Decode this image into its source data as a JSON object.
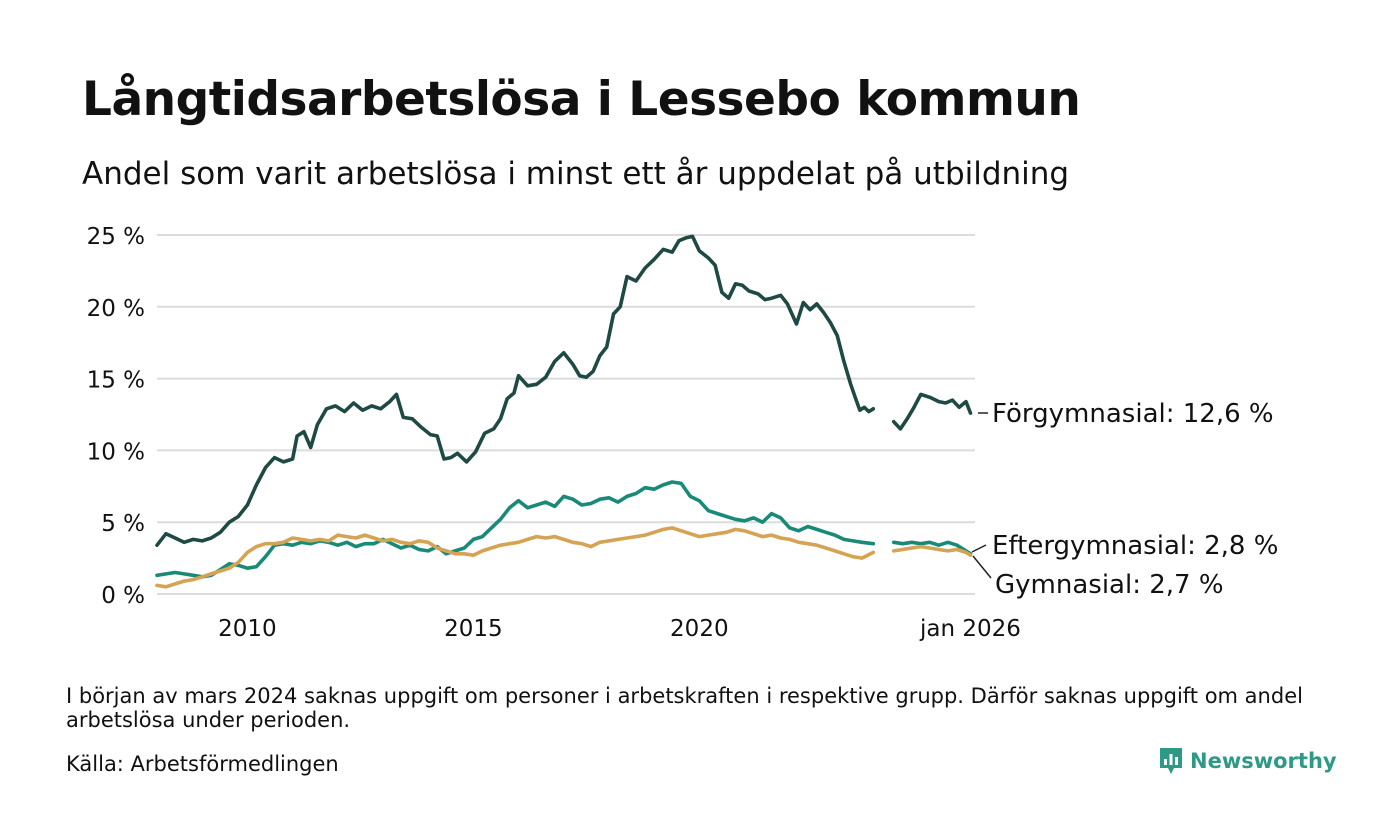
{
  "title": "Långtidsarbetslösa i Lessebo kommun",
  "subtitle": "Andel som varit arbetslösa i minst ett år uppdelat på utbildning",
  "note": "I början av mars 2024 saknas uppgift om personer i arbetskraften i respektive grupp. Därför saknas uppgift om andel arbetslösa under perioden.",
  "source": "Källa: Arbetsförmedlingen",
  "brand": "Newsworthy",
  "chart_data": {
    "type": "line",
    "x_unit": "year (decimal)",
    "xlim": [
      2008.0,
      2026.1
    ],
    "ylim": [
      0,
      25
    ],
    "y_ticks": [
      {
        "value": 0,
        "label": "0 %"
      },
      {
        "value": 5,
        "label": "5 %"
      },
      {
        "value": 10,
        "label": "10 %"
      },
      {
        "value": 15,
        "label": "15 %"
      },
      {
        "value": 20,
        "label": "20 %"
      },
      {
        "value": 25,
        "label": "25 %"
      }
    ],
    "x_ticks": [
      {
        "value": 2010,
        "label": "2010"
      },
      {
        "value": 2015,
        "label": "2015"
      },
      {
        "value": 2020,
        "label": "2020"
      },
      {
        "value": 2026,
        "label": "jan 2026"
      }
    ],
    "grid": true,
    "gap": {
      "from": 2023.85,
      "to": 2024.3
    },
    "series": [
      {
        "name": "Förgymnasial",
        "label": "Förgymnasial: 12,6 %",
        "color": "#1f4a44",
        "points": [
          [
            2008.0,
            3.4
          ],
          [
            2008.2,
            4.2
          ],
          [
            2008.4,
            3.9
          ],
          [
            2008.6,
            3.6
          ],
          [
            2008.8,
            3.8
          ],
          [
            2009.0,
            3.7
          ],
          [
            2009.2,
            3.9
          ],
          [
            2009.4,
            4.3
          ],
          [
            2009.6,
            5.0
          ],
          [
            2009.8,
            5.4
          ],
          [
            2010.0,
            6.2
          ],
          [
            2010.2,
            7.6
          ],
          [
            2010.4,
            8.8
          ],
          [
            2010.6,
            9.5
          ],
          [
            2010.8,
            9.2
          ],
          [
            2011.0,
            9.4
          ],
          [
            2011.1,
            11.0
          ],
          [
            2011.25,
            11.3
          ],
          [
            2011.4,
            10.2
          ],
          [
            2011.55,
            11.8
          ],
          [
            2011.75,
            12.9
          ],
          [
            2011.95,
            13.1
          ],
          [
            2012.15,
            12.7
          ],
          [
            2012.35,
            13.3
          ],
          [
            2012.55,
            12.8
          ],
          [
            2012.75,
            13.1
          ],
          [
            2012.95,
            12.9
          ],
          [
            2013.15,
            13.4
          ],
          [
            2013.3,
            13.9
          ],
          [
            2013.45,
            12.3
          ],
          [
            2013.65,
            12.2
          ],
          [
            2013.85,
            11.6
          ],
          [
            2014.05,
            11.1
          ],
          [
            2014.2,
            11.0
          ],
          [
            2014.35,
            9.4
          ],
          [
            2014.5,
            9.5
          ],
          [
            2014.65,
            9.8
          ],
          [
            2014.85,
            9.2
          ],
          [
            2015.05,
            9.9
          ],
          [
            2015.25,
            11.2
          ],
          [
            2015.45,
            11.5
          ],
          [
            2015.6,
            12.2
          ],
          [
            2015.75,
            13.6
          ],
          [
            2015.9,
            14.0
          ],
          [
            2016.0,
            15.2
          ],
          [
            2016.2,
            14.5
          ],
          [
            2016.4,
            14.6
          ],
          [
            2016.6,
            15.1
          ],
          [
            2016.8,
            16.2
          ],
          [
            2017.0,
            16.8
          ],
          [
            2017.2,
            16.0
          ],
          [
            2017.35,
            15.2
          ],
          [
            2017.5,
            15.1
          ],
          [
            2017.65,
            15.5
          ],
          [
            2017.8,
            16.6
          ],
          [
            2017.95,
            17.2
          ],
          [
            2018.1,
            19.5
          ],
          [
            2018.25,
            20.0
          ],
          [
            2018.4,
            22.1
          ],
          [
            2018.6,
            21.8
          ],
          [
            2018.8,
            22.7
          ],
          [
            2019.0,
            23.3
          ],
          [
            2019.2,
            24.0
          ],
          [
            2019.4,
            23.8
          ],
          [
            2019.55,
            24.6
          ],
          [
            2019.7,
            24.8
          ],
          [
            2019.85,
            24.9
          ],
          [
            2020.0,
            23.9
          ],
          [
            2020.2,
            23.4
          ],
          [
            2020.35,
            22.9
          ],
          [
            2020.5,
            21.0
          ],
          [
            2020.65,
            20.6
          ],
          [
            2020.8,
            21.6
          ],
          [
            2020.95,
            21.5
          ],
          [
            2021.1,
            21.1
          ],
          [
            2021.3,
            20.9
          ],
          [
            2021.45,
            20.5
          ],
          [
            2021.6,
            20.6
          ],
          [
            2021.8,
            20.8
          ],
          [
            2021.95,
            20.2
          ],
          [
            2022.15,
            18.8
          ],
          [
            2022.3,
            20.3
          ],
          [
            2022.45,
            19.8
          ],
          [
            2022.6,
            20.2
          ],
          [
            2022.75,
            19.6
          ],
          [
            2022.9,
            18.9
          ],
          [
            2023.05,
            18.0
          ],
          [
            2023.2,
            16.2
          ],
          [
            2023.35,
            14.6
          ],
          [
            2023.45,
            13.7
          ],
          [
            2023.55,
            12.8
          ],
          [
            2023.65,
            13.0
          ],
          [
            2023.75,
            12.7
          ],
          [
            2023.85,
            12.9
          ],
          [
            2024.3,
            12.0
          ],
          [
            2024.45,
            11.5
          ],
          [
            2024.6,
            12.2
          ],
          [
            2024.75,
            13.0
          ],
          [
            2024.9,
            13.9
          ],
          [
            2025.1,
            13.7
          ],
          [
            2025.3,
            13.4
          ],
          [
            2025.45,
            13.3
          ],
          [
            2025.6,
            13.5
          ],
          [
            2025.75,
            13.0
          ],
          [
            2025.9,
            13.4
          ],
          [
            2026.0,
            12.6
          ]
        ]
      },
      {
        "name": "Eftergymnasial",
        "label": "Eftergymnasial:  2,8 %",
        "color": "#1a8a78",
        "points": [
          [
            2008.0,
            1.3
          ],
          [
            2008.2,
            1.4
          ],
          [
            2008.4,
            1.5
          ],
          [
            2008.6,
            1.4
          ],
          [
            2008.8,
            1.3
          ],
          [
            2009.0,
            1.2
          ],
          [
            2009.2,
            1.3
          ],
          [
            2009.4,
            1.7
          ],
          [
            2009.6,
            2.1
          ],
          [
            2009.8,
            2.0
          ],
          [
            2010.0,
            1.8
          ],
          [
            2010.2,
            1.9
          ],
          [
            2010.4,
            2.6
          ],
          [
            2010.6,
            3.4
          ],
          [
            2010.8,
            3.5
          ],
          [
            2011.0,
            3.4
          ],
          [
            2011.2,
            3.6
          ],
          [
            2011.4,
            3.5
          ],
          [
            2011.6,
            3.7
          ],
          [
            2011.8,
            3.6
          ],
          [
            2012.0,
            3.4
          ],
          [
            2012.2,
            3.6
          ],
          [
            2012.4,
            3.3
          ],
          [
            2012.6,
            3.5
          ],
          [
            2012.8,
            3.5
          ],
          [
            2013.0,
            3.8
          ],
          [
            2013.2,
            3.5
          ],
          [
            2013.4,
            3.2
          ],
          [
            2013.6,
            3.4
          ],
          [
            2013.8,
            3.1
          ],
          [
            2014.0,
            3.0
          ],
          [
            2014.2,
            3.3
          ],
          [
            2014.4,
            2.8
          ],
          [
            2014.6,
            3.0
          ],
          [
            2014.8,
            3.2
          ],
          [
            2015.0,
            3.8
          ],
          [
            2015.2,
            4.0
          ],
          [
            2015.4,
            4.6
          ],
          [
            2015.6,
            5.2
          ],
          [
            2015.8,
            6.0
          ],
          [
            2016.0,
            6.5
          ],
          [
            2016.2,
            6.0
          ],
          [
            2016.4,
            6.2
          ],
          [
            2016.6,
            6.4
          ],
          [
            2016.8,
            6.1
          ],
          [
            2017.0,
            6.8
          ],
          [
            2017.2,
            6.6
          ],
          [
            2017.4,
            6.2
          ],
          [
            2017.6,
            6.3
          ],
          [
            2017.8,
            6.6
          ],
          [
            2018.0,
            6.7
          ],
          [
            2018.2,
            6.4
          ],
          [
            2018.4,
            6.8
          ],
          [
            2018.6,
            7.0
          ],
          [
            2018.8,
            7.4
          ],
          [
            2019.0,
            7.3
          ],
          [
            2019.2,
            7.6
          ],
          [
            2019.4,
            7.8
          ],
          [
            2019.6,
            7.7
          ],
          [
            2019.8,
            6.8
          ],
          [
            2020.0,
            6.5
          ],
          [
            2020.2,
            5.8
          ],
          [
            2020.4,
            5.6
          ],
          [
            2020.6,
            5.4
          ],
          [
            2020.8,
            5.2
          ],
          [
            2021.0,
            5.1
          ],
          [
            2021.2,
            5.3
          ],
          [
            2021.4,
            5.0
          ],
          [
            2021.6,
            5.6
          ],
          [
            2021.8,
            5.3
          ],
          [
            2022.0,
            4.6
          ],
          [
            2022.2,
            4.4
          ],
          [
            2022.4,
            4.7
          ],
          [
            2022.6,
            4.5
          ],
          [
            2022.8,
            4.3
          ],
          [
            2023.0,
            4.1
          ],
          [
            2023.2,
            3.8
          ],
          [
            2023.4,
            3.7
          ],
          [
            2023.6,
            3.6
          ],
          [
            2023.85,
            3.5
          ],
          [
            2024.3,
            3.6
          ],
          [
            2024.5,
            3.5
          ],
          [
            2024.7,
            3.6
          ],
          [
            2024.9,
            3.5
          ],
          [
            2025.1,
            3.6
          ],
          [
            2025.3,
            3.4
          ],
          [
            2025.5,
            3.6
          ],
          [
            2025.7,
            3.4
          ],
          [
            2025.9,
            3.0
          ],
          [
            2026.0,
            2.8
          ]
        ]
      },
      {
        "name": "Gymnasial",
        "label": "Gymnasial:  2,7 %",
        "color": "#d4a354",
        "points": [
          [
            2008.0,
            0.6
          ],
          [
            2008.2,
            0.5
          ],
          [
            2008.4,
            0.7
          ],
          [
            2008.6,
            0.9
          ],
          [
            2008.8,
            1.0
          ],
          [
            2009.0,
            1.2
          ],
          [
            2009.2,
            1.4
          ],
          [
            2009.4,
            1.6
          ],
          [
            2009.6,
            1.8
          ],
          [
            2009.8,
            2.2
          ],
          [
            2010.0,
            2.9
          ],
          [
            2010.2,
            3.3
          ],
          [
            2010.4,
            3.5
          ],
          [
            2010.6,
            3.5
          ],
          [
            2010.8,
            3.6
          ],
          [
            2011.0,
            3.9
          ],
          [
            2011.2,
            3.8
          ],
          [
            2011.4,
            3.7
          ],
          [
            2011.6,
            3.8
          ],
          [
            2011.8,
            3.7
          ],
          [
            2012.0,
            4.1
          ],
          [
            2012.2,
            4.0
          ],
          [
            2012.4,
            3.9
          ],
          [
            2012.6,
            4.1
          ],
          [
            2012.8,
            3.9
          ],
          [
            2013.0,
            3.7
          ],
          [
            2013.2,
            3.8
          ],
          [
            2013.4,
            3.6
          ],
          [
            2013.6,
            3.5
          ],
          [
            2013.8,
            3.7
          ],
          [
            2014.0,
            3.6
          ],
          [
            2014.2,
            3.2
          ],
          [
            2014.4,
            3.0
          ],
          [
            2014.6,
            2.8
          ],
          [
            2014.8,
            2.8
          ],
          [
            2015.0,
            2.7
          ],
          [
            2015.2,
            3.0
          ],
          [
            2015.4,
            3.2
          ],
          [
            2015.6,
            3.4
          ],
          [
            2015.8,
            3.5
          ],
          [
            2016.0,
            3.6
          ],
          [
            2016.2,
            3.8
          ],
          [
            2016.4,
            4.0
          ],
          [
            2016.6,
            3.9
          ],
          [
            2016.8,
            4.0
          ],
          [
            2017.0,
            3.8
          ],
          [
            2017.2,
            3.6
          ],
          [
            2017.4,
            3.5
          ],
          [
            2017.6,
            3.3
          ],
          [
            2017.8,
            3.6
          ],
          [
            2018.0,
            3.7
          ],
          [
            2018.2,
            3.8
          ],
          [
            2018.4,
            3.9
          ],
          [
            2018.6,
            4.0
          ],
          [
            2018.8,
            4.1
          ],
          [
            2019.0,
            4.3
          ],
          [
            2019.2,
            4.5
          ],
          [
            2019.4,
            4.6
          ],
          [
            2019.6,
            4.4
          ],
          [
            2019.8,
            4.2
          ],
          [
            2020.0,
            4.0
          ],
          [
            2020.2,
            4.1
          ],
          [
            2020.4,
            4.2
          ],
          [
            2020.6,
            4.3
          ],
          [
            2020.8,
            4.5
          ],
          [
            2021.0,
            4.4
          ],
          [
            2021.2,
            4.2
          ],
          [
            2021.4,
            4.0
          ],
          [
            2021.6,
            4.1
          ],
          [
            2021.8,
            3.9
          ],
          [
            2022.0,
            3.8
          ],
          [
            2022.2,
            3.6
          ],
          [
            2022.4,
            3.5
          ],
          [
            2022.6,
            3.4
          ],
          [
            2022.8,
            3.2
          ],
          [
            2023.0,
            3.0
          ],
          [
            2023.2,
            2.8
          ],
          [
            2023.4,
            2.6
          ],
          [
            2023.6,
            2.5
          ],
          [
            2023.85,
            2.9
          ],
          [
            2024.3,
            3.0
          ],
          [
            2024.5,
            3.1
          ],
          [
            2024.7,
            3.2
          ],
          [
            2024.9,
            3.3
          ],
          [
            2025.1,
            3.2
          ],
          [
            2025.3,
            3.1
          ],
          [
            2025.5,
            3.0
          ],
          [
            2025.7,
            3.1
          ],
          [
            2025.9,
            2.9
          ],
          [
            2026.0,
            2.7
          ]
        ]
      }
    ]
  }
}
